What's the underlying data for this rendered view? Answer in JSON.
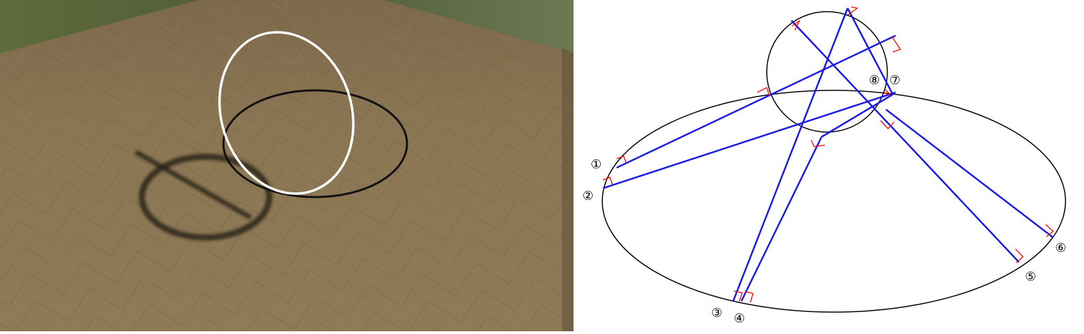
{
  "scene": {
    "description_free": true,
    "colors": {
      "floor": "#8a7553",
      "floor_dark": "#6b5a3e",
      "sky_grass": "#6f7a45",
      "white_ring": "#ffffff",
      "black_ring": "#111111",
      "shadow": "#2b2418"
    }
  },
  "diagram": {
    "colors": {
      "outline": "#000000",
      "ray": "#1a1ae6",
      "right_angle": "#ff0000"
    },
    "labels": [
      {
        "id": "1",
        "text": "①"
      },
      {
        "id": "2",
        "text": "②"
      },
      {
        "id": "3",
        "text": "③"
      },
      {
        "id": "4",
        "text": "④"
      },
      {
        "id": "5",
        "text": "⑤"
      },
      {
        "id": "6",
        "text": "⑥"
      },
      {
        "id": "7",
        "text": "⑦"
      },
      {
        "id": "8",
        "text": "⑧"
      }
    ]
  }
}
